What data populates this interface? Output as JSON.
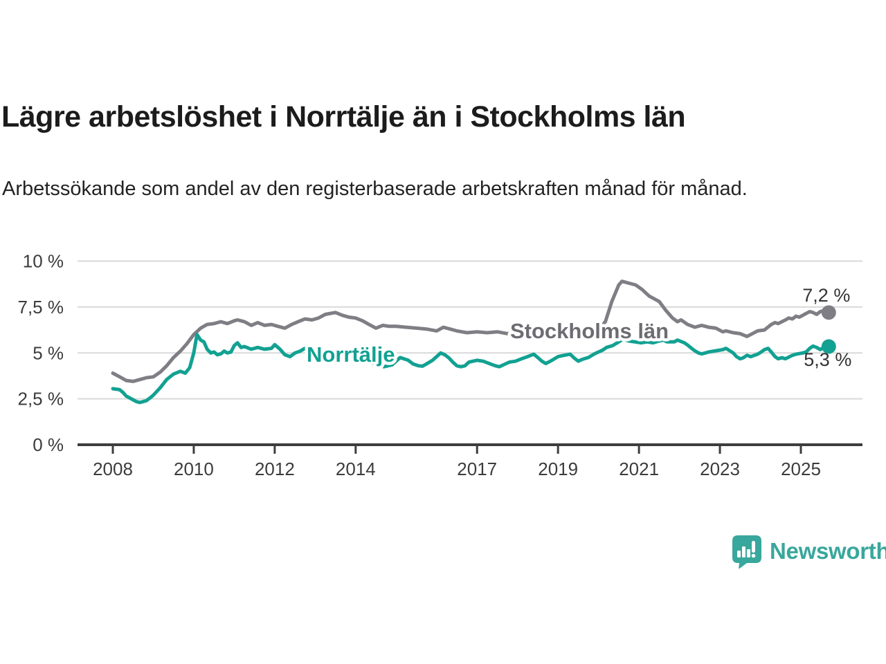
{
  "header": {
    "title": "Lägre arbetslöshet i Norrtälje än i Stockholms län",
    "subtitle": "Arbetssökande som andel av den registerbaserade arbetskraften månad för månad."
  },
  "chart_data": {
    "type": "line",
    "title": "Lägre arbetslöshet i Norrtälje än i Stockholms län",
    "xlabel": "",
    "ylabel": "",
    "grid": true,
    "legend": "inline-labels",
    "x_axis": {
      "ticks": [
        2008,
        2010,
        2012,
        2014,
        2017,
        2019,
        2021,
        2023,
        2025
      ],
      "range": [
        2007.1,
        2026.5
      ]
    },
    "y_axis": {
      "tick_values": [
        0,
        2.5,
        5,
        7.5,
        10
      ],
      "tick_labels": [
        "0 %",
        "2,5 %",
        "5 %",
        "7,5 %",
        "10 %"
      ],
      "range": [
        0,
        10
      ],
      "unit": "%"
    },
    "series": [
      {
        "name": "Stockholms län",
        "color": "#7E7E84",
        "label_color": "#6C6C71",
        "end_label": "7,2 %",
        "end_value": 7.2,
        "points": [
          [
            2008.0,
            3.9
          ],
          [
            2008.17,
            3.7
          ],
          [
            2008.33,
            3.5
          ],
          [
            2008.5,
            3.45
          ],
          [
            2008.67,
            3.55
          ],
          [
            2008.83,
            3.65
          ],
          [
            2009.0,
            3.7
          ],
          [
            2009.17,
            3.95
          ],
          [
            2009.33,
            4.3
          ],
          [
            2009.5,
            4.75
          ],
          [
            2009.67,
            5.1
          ],
          [
            2009.83,
            5.5
          ],
          [
            2010.0,
            6.0
          ],
          [
            2010.17,
            6.35
          ],
          [
            2010.33,
            6.55
          ],
          [
            2010.5,
            6.6
          ],
          [
            2010.67,
            6.7
          ],
          [
            2010.83,
            6.6
          ],
          [
            2011.0,
            6.75
          ],
          [
            2011.08,
            6.8
          ],
          [
            2011.25,
            6.7
          ],
          [
            2011.42,
            6.5
          ],
          [
            2011.58,
            6.65
          ],
          [
            2011.75,
            6.5
          ],
          [
            2011.92,
            6.55
          ],
          [
            2012.08,
            6.45
          ],
          [
            2012.25,
            6.35
          ],
          [
            2012.42,
            6.55
          ],
          [
            2012.58,
            6.7
          ],
          [
            2012.75,
            6.85
          ],
          [
            2012.92,
            6.8
          ],
          [
            2013.08,
            6.9
          ],
          [
            2013.25,
            7.1
          ],
          [
            2013.5,
            7.2
          ],
          [
            2013.67,
            7.05
          ],
          [
            2013.83,
            6.95
          ],
          [
            2014.0,
            6.9
          ],
          [
            2014.17,
            6.75
          ],
          [
            2014.33,
            6.55
          ],
          [
            2014.5,
            6.35
          ],
          [
            2014.67,
            6.5
          ],
          [
            2014.83,
            6.45
          ],
          [
            2015.0,
            6.45
          ],
          [
            2015.25,
            6.4
          ],
          [
            2015.5,
            6.35
          ],
          [
            2015.75,
            6.3
          ],
          [
            2016.0,
            6.2
          ],
          [
            2016.17,
            6.4
          ],
          [
            2016.33,
            6.3
          ],
          [
            2016.5,
            6.2
          ],
          [
            2016.75,
            6.1
          ],
          [
            2017.0,
            6.15
          ],
          [
            2017.25,
            6.1
          ],
          [
            2017.5,
            6.15
          ],
          [
            2017.75,
            6.05
          ],
          [
            2018.0,
            6.1
          ],
          [
            2018.25,
            6.15
          ],
          [
            2018.5,
            6.05
          ],
          [
            2018.75,
            6.1
          ],
          [
            2019.0,
            6.1
          ],
          [
            2019.25,
            6.15
          ],
          [
            2019.5,
            6.1
          ],
          [
            2019.75,
            6.2
          ],
          [
            2020.0,
            6.3
          ],
          [
            2020.17,
            6.7
          ],
          [
            2020.33,
            7.8
          ],
          [
            2020.5,
            8.7
          ],
          [
            2020.58,
            8.9
          ],
          [
            2020.75,
            8.8
          ],
          [
            2020.92,
            8.7
          ],
          [
            2021.08,
            8.45
          ],
          [
            2021.25,
            8.1
          ],
          [
            2021.5,
            7.8
          ],
          [
            2021.67,
            7.3
          ],
          [
            2021.83,
            6.9
          ],
          [
            2021.95,
            6.7
          ],
          [
            2022.04,
            6.8
          ],
          [
            2022.2,
            6.55
          ],
          [
            2022.38,
            6.4
          ],
          [
            2022.55,
            6.5
          ],
          [
            2022.72,
            6.4
          ],
          [
            2022.9,
            6.35
          ],
          [
            2023.07,
            6.15
          ],
          [
            2023.15,
            6.2
          ],
          [
            2023.33,
            6.1
          ],
          [
            2023.5,
            6.05
          ],
          [
            2023.67,
            5.9
          ],
          [
            2023.76,
            6.0
          ],
          [
            2023.93,
            6.2
          ],
          [
            2024.1,
            6.25
          ],
          [
            2024.27,
            6.55
          ],
          [
            2024.36,
            6.65
          ],
          [
            2024.44,
            6.6
          ],
          [
            2024.62,
            6.8
          ],
          [
            2024.7,
            6.9
          ],
          [
            2024.79,
            6.85
          ],
          [
            2024.88,
            7.0
          ],
          [
            2024.96,
            6.95
          ],
          [
            2025.05,
            7.05
          ],
          [
            2025.13,
            7.15
          ],
          [
            2025.22,
            7.25
          ],
          [
            2025.3,
            7.2
          ],
          [
            2025.39,
            7.1
          ],
          [
            2025.48,
            7.25
          ],
          [
            2025.56,
            7.3
          ],
          [
            2025.69,
            7.2
          ]
        ]
      },
      {
        "name": "Norrtälje",
        "color": "#12A192",
        "label_color": "#12A192",
        "end_label": "5,3 %",
        "end_value": 5.3,
        "points": [
          [
            2008.0,
            3.05
          ],
          [
            2008.17,
            3.0
          ],
          [
            2008.25,
            2.85
          ],
          [
            2008.33,
            2.65
          ],
          [
            2008.5,
            2.45
          ],
          [
            2008.58,
            2.35
          ],
          [
            2008.67,
            2.3
          ],
          [
            2008.83,
            2.4
          ],
          [
            2008.92,
            2.55
          ],
          [
            2009.0,
            2.7
          ],
          [
            2009.17,
            3.1
          ],
          [
            2009.33,
            3.55
          ],
          [
            2009.5,
            3.85
          ],
          [
            2009.67,
            4.0
          ],
          [
            2009.79,
            3.9
          ],
          [
            2009.9,
            4.2
          ],
          [
            2010.0,
            5.0
          ],
          [
            2010.08,
            6.0
          ],
          [
            2010.17,
            5.7
          ],
          [
            2010.25,
            5.6
          ],
          [
            2010.33,
            5.2
          ],
          [
            2010.42,
            5.0
          ],
          [
            2010.5,
            5.05
          ],
          [
            2010.58,
            4.9
          ],
          [
            2010.67,
            4.95
          ],
          [
            2010.75,
            5.1
          ],
          [
            2010.83,
            5.0
          ],
          [
            2010.92,
            5.05
          ],
          [
            2011.0,
            5.4
          ],
          [
            2011.08,
            5.55
          ],
          [
            2011.17,
            5.3
          ],
          [
            2011.25,
            5.35
          ],
          [
            2011.42,
            5.2
          ],
          [
            2011.58,
            5.3
          ],
          [
            2011.75,
            5.2
          ],
          [
            2011.92,
            5.25
          ],
          [
            2012.0,
            5.45
          ],
          [
            2012.13,
            5.2
          ],
          [
            2012.25,
            4.9
          ],
          [
            2012.38,
            4.8
          ],
          [
            2012.5,
            5.0
          ],
          [
            2012.63,
            5.1
          ],
          [
            2012.75,
            5.25
          ],
          [
            2012.88,
            5.1
          ],
          [
            2013.0,
            4.95
          ],
          [
            2013.25,
            4.8
          ],
          [
            2013.5,
            4.7
          ],
          [
            2013.75,
            4.6
          ],
          [
            2014.0,
            4.65
          ],
          [
            2014.25,
            4.5
          ],
          [
            2014.5,
            4.4
          ],
          [
            2014.7,
            4.25
          ],
          [
            2014.9,
            4.35
          ],
          [
            2015.1,
            4.75
          ],
          [
            2015.3,
            4.6
          ],
          [
            2015.42,
            4.4
          ],
          [
            2015.55,
            4.3
          ],
          [
            2015.65,
            4.28
          ],
          [
            2015.75,
            4.4
          ],
          [
            2015.9,
            4.6
          ],
          [
            2016.0,
            4.8
          ],
          [
            2016.1,
            5.0
          ],
          [
            2016.2,
            4.9
          ],
          [
            2016.3,
            4.74
          ],
          [
            2016.4,
            4.5
          ],
          [
            2016.5,
            4.3
          ],
          [
            2016.6,
            4.25
          ],
          [
            2016.7,
            4.3
          ],
          [
            2016.8,
            4.5
          ],
          [
            2016.9,
            4.55
          ],
          [
            2017.0,
            4.6
          ],
          [
            2017.15,
            4.55
          ],
          [
            2017.3,
            4.42
          ],
          [
            2017.45,
            4.3
          ],
          [
            2017.55,
            4.25
          ],
          [
            2017.65,
            4.35
          ],
          [
            2017.8,
            4.5
          ],
          [
            2017.95,
            4.55
          ],
          [
            2018.1,
            4.68
          ],
          [
            2018.25,
            4.8
          ],
          [
            2018.4,
            4.93
          ],
          [
            2018.5,
            4.75
          ],
          [
            2018.6,
            4.55
          ],
          [
            2018.7,
            4.42
          ],
          [
            2018.85,
            4.6
          ],
          [
            2019.0,
            4.8
          ],
          [
            2019.15,
            4.87
          ],
          [
            2019.3,
            4.93
          ],
          [
            2019.4,
            4.72
          ],
          [
            2019.5,
            4.55
          ],
          [
            2019.6,
            4.65
          ],
          [
            2019.75,
            4.75
          ],
          [
            2019.9,
            4.95
          ],
          [
            2020.0,
            5.05
          ],
          [
            2020.1,
            5.15
          ],
          [
            2020.2,
            5.3
          ],
          [
            2020.35,
            5.4
          ],
          [
            2020.5,
            5.6
          ],
          [
            2020.6,
            5.75
          ],
          [
            2020.75,
            5.65
          ],
          [
            2020.9,
            5.6
          ],
          [
            2021.05,
            5.55
          ],
          [
            2021.2,
            5.6
          ],
          [
            2021.35,
            5.55
          ],
          [
            2021.5,
            5.65
          ],
          [
            2021.6,
            5.7
          ],
          [
            2021.7,
            5.6
          ],
          [
            2021.87,
            5.6
          ],
          [
            2021.95,
            5.7
          ],
          [
            2022.12,
            5.55
          ],
          [
            2022.2,
            5.43
          ],
          [
            2022.3,
            5.25
          ],
          [
            2022.38,
            5.12
          ],
          [
            2022.47,
            5.0
          ],
          [
            2022.55,
            4.95
          ],
          [
            2022.64,
            5.0
          ],
          [
            2022.72,
            5.05
          ],
          [
            2022.9,
            5.12
          ],
          [
            2023.07,
            5.18
          ],
          [
            2023.15,
            5.25
          ],
          [
            2023.33,
            5.0
          ],
          [
            2023.41,
            4.8
          ],
          [
            2023.5,
            4.68
          ],
          [
            2023.58,
            4.74
          ],
          [
            2023.67,
            4.87
          ],
          [
            2023.76,
            4.8
          ],
          [
            2023.93,
            4.93
          ],
          [
            2024.02,
            5.05
          ],
          [
            2024.1,
            5.18
          ],
          [
            2024.19,
            5.25
          ],
          [
            2024.27,
            5.05
          ],
          [
            2024.36,
            4.8
          ],
          [
            2024.44,
            4.68
          ],
          [
            2024.53,
            4.74
          ],
          [
            2024.62,
            4.68
          ],
          [
            2024.79,
            4.87
          ],
          [
            2024.88,
            4.93
          ],
          [
            2025.05,
            5.0
          ],
          [
            2025.13,
            5.05
          ],
          [
            2025.22,
            5.25
          ],
          [
            2025.3,
            5.37
          ],
          [
            2025.39,
            5.3
          ],
          [
            2025.48,
            5.18
          ],
          [
            2025.56,
            5.3
          ],
          [
            2025.64,
            5.43
          ],
          [
            2025.69,
            5.35
          ]
        ]
      }
    ]
  },
  "branding": {
    "name": "Newsworthy",
    "color": "#38A79C",
    "icon": "newsworthy-speech-bubble-bar-chart-icon"
  }
}
